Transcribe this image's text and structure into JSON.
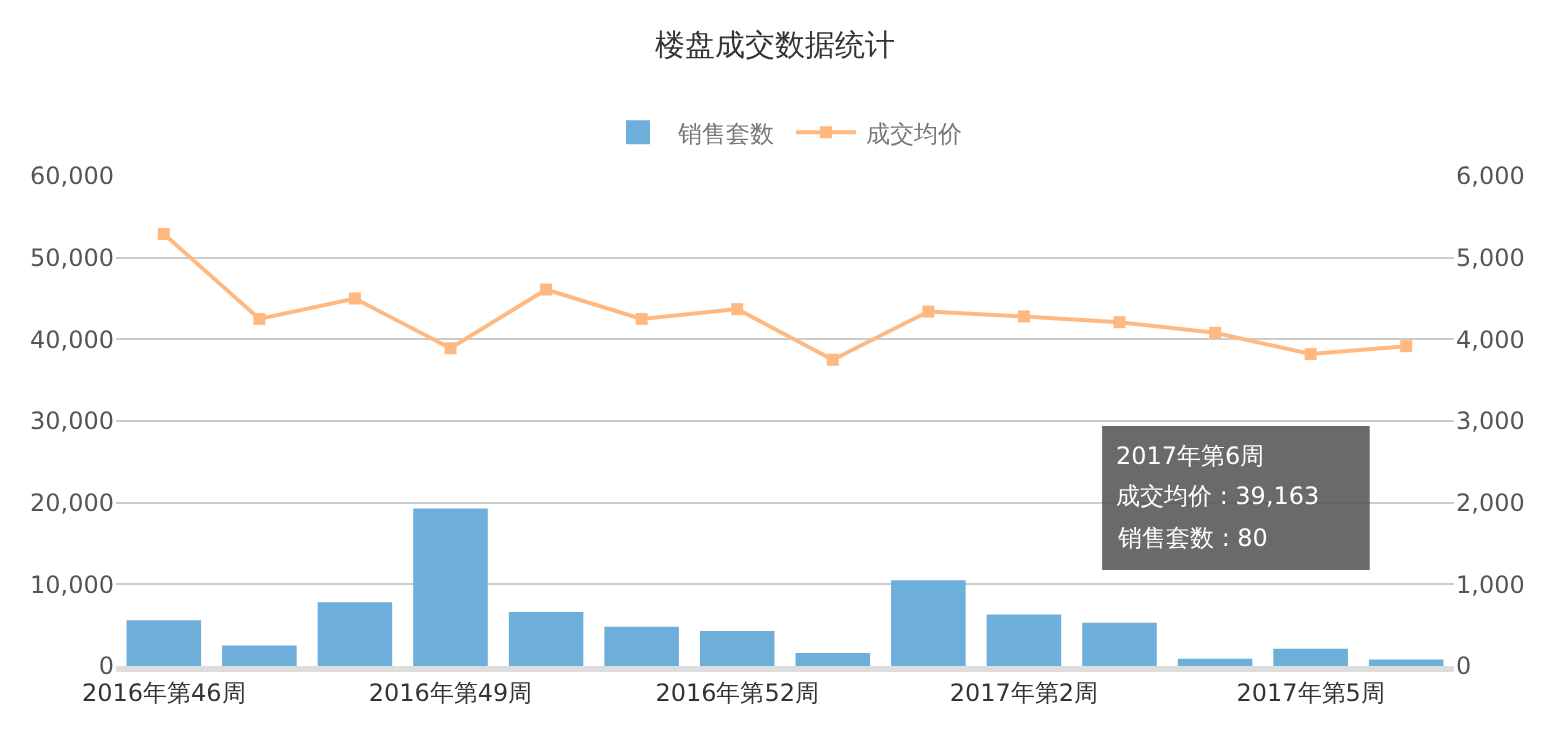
{
  "chart_data": {
    "type": "bar",
    "title": "楼盘成交数据统计",
    "categories": [
      "2016年第46周",
      null,
      null,
      "2016年第49周",
      null,
      null,
      "2016年第52周",
      null,
      null,
      "2017年第2周",
      null,
      null,
      "2017年第5周",
      null
    ],
    "series": [
      {
        "name": "销售套数",
        "color": "#6daedb",
        "axis": "y2",
        "values": [
          560,
          250,
          780,
          1930,
          660,
          480,
          430,
          160,
          1050,
          630,
          530,
          90,
          210,
          80
        ]
      },
      {
        "name": "成交均价",
        "type": "line",
        "color": "#ffb980",
        "marker": "square",
        "values": [
          52900,
          42500,
          45000,
          38900,
          46100,
          42500,
          43700,
          37500,
          43400,
          42800,
          42100,
          40800,
          38200,
          39163
        ]
      }
    ],
    "ylim": [
      0,
      60000
    ],
    "yticks": [
      {
        "value": 0,
        "label": "0"
      },
      {
        "value": 10000,
        "label": "10,000"
      },
      {
        "value": 20000,
        "label": "20,000"
      },
      {
        "value": 30000,
        "label": "30,000"
      },
      {
        "value": 40000,
        "label": "40,000"
      },
      {
        "value": 50000,
        "label": "50,000"
      },
      {
        "value": 60000,
        "label": "60,000"
      }
    ],
    "y2lim": [
      0,
      6000
    ],
    "y2ticks": [
      {
        "value": 0,
        "label": "0"
      },
      {
        "value": 1000,
        "label": "1,000"
      },
      {
        "value": 2000,
        "label": "2,000"
      },
      {
        "value": 3000,
        "label": "3,000"
      },
      {
        "value": 4000,
        "label": "4,000"
      },
      {
        "value": 5000,
        "label": "5,000"
      },
      {
        "value": 6000,
        "label": "6,000"
      }
    ],
    "grid": "y",
    "legend": "top",
    "annotations": [
      "2017年第6周",
      "成交均价 : 39,163",
      "销售套数 : 80"
    ]
  }
}
